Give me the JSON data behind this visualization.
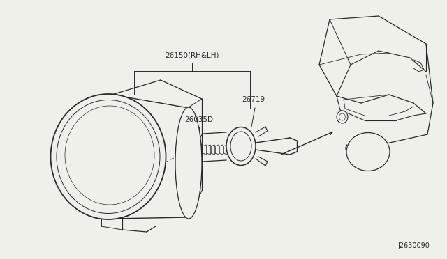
{
  "bg_color": "#f0f0eb",
  "diagram_id": "J2630090",
  "line_color": "#2a2a2a",
  "text_color": "#2a2a2a",
  "label_26150": "26150(RH&LH)",
  "label_26035D": "26035D",
  "label_26719": "26719"
}
